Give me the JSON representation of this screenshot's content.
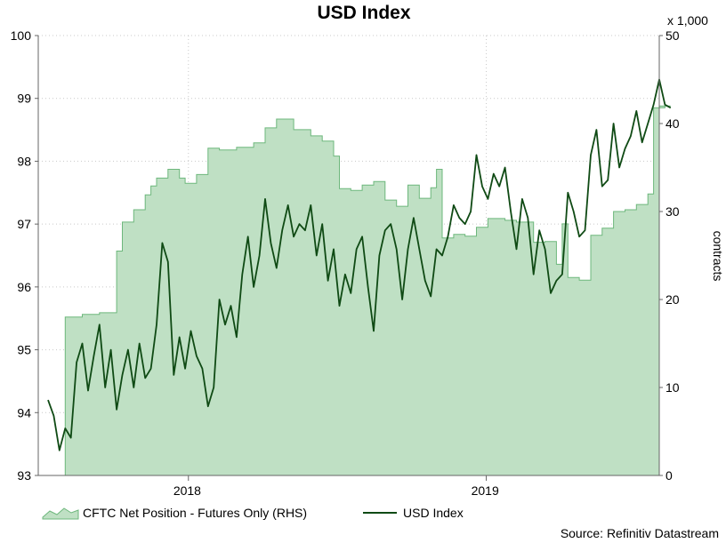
{
  "chart_data": {
    "type": "line",
    "title": "USD Index",
    "source": "Source: Refinitiv Datastream",
    "x_ticks": [
      "2018",
      "2019"
    ],
    "x_range": [
      "2017-07",
      "2019-08"
    ],
    "left_axis": {
      "ylim": [
        93,
        100
      ],
      "ticks": [
        "93",
        "94",
        "95",
        "96",
        "97",
        "98",
        "99",
        "100"
      ]
    },
    "right_axis": {
      "ylim": [
        0,
        50
      ],
      "ticks": [
        "0",
        "10",
        "20",
        "30",
        "40",
        "50"
      ],
      "label": "contracts",
      "multiplier": "x 1,000"
    },
    "legend": {
      "placement": "bottom-left"
    },
    "colors": {
      "area_fill": "#bfe0c4",
      "area_stroke": "#6db77c",
      "line": "#0f4a14",
      "grid": "#c9c9c9"
    },
    "series": [
      {
        "name": "CFTC Net Position - Futures Only (RHS)",
        "kind": "area",
        "axis": "right",
        "points": [
          [
            "2017-07-13",
            0
          ],
          [
            "2017-07-25",
            0
          ],
          [
            "2017-08-03",
            18
          ],
          [
            "2017-08-24",
            18.3
          ],
          [
            "2017-09-14",
            18.5
          ],
          [
            "2017-09-28",
            18.5
          ],
          [
            "2017-10-05",
            25.5
          ],
          [
            "2017-10-12",
            28.8
          ],
          [
            "2017-10-26",
            30.2
          ],
          [
            "2017-11-09",
            31.9
          ],
          [
            "2017-11-16",
            32.9
          ],
          [
            "2017-11-23",
            33.8
          ],
          [
            "2017-12-07",
            34.8
          ],
          [
            "2017-12-21",
            33.8
          ],
          [
            "2017-12-28",
            33.2
          ],
          [
            "2018-01-11",
            34.2
          ],
          [
            "2018-01-25",
            37.2
          ],
          [
            "2018-02-08",
            37.0
          ],
          [
            "2018-03-01",
            37.3
          ],
          [
            "2018-03-22",
            37.8
          ],
          [
            "2018-04-05",
            39.5
          ],
          [
            "2018-04-19",
            40.5
          ],
          [
            "2018-05-03",
            40.5
          ],
          [
            "2018-05-10",
            39.3
          ],
          [
            "2018-05-31",
            38.6
          ],
          [
            "2018-06-14",
            38.0
          ],
          [
            "2018-06-28",
            36.3
          ],
          [
            "2018-07-05",
            32.6
          ],
          [
            "2018-07-19",
            32.4
          ],
          [
            "2018-08-02",
            33.0
          ],
          [
            "2018-08-16",
            33.4
          ],
          [
            "2018-08-30",
            31.3
          ],
          [
            "2018-09-13",
            30.6
          ],
          [
            "2018-09-27",
            33.0
          ],
          [
            "2018-10-11",
            31.5
          ],
          [
            "2018-10-25",
            32.7
          ],
          [
            "2018-11-01",
            34.8
          ],
          [
            "2018-11-08",
            27.0
          ],
          [
            "2018-11-22",
            27.4
          ],
          [
            "2018-12-06",
            27.2
          ],
          [
            "2018-12-20",
            28.2
          ],
          [
            "2019-01-03",
            29.2
          ],
          [
            "2019-01-24",
            29.0
          ],
          [
            "2019-02-07",
            28.8
          ],
          [
            "2019-02-28",
            26.5
          ],
          [
            "2019-03-14",
            26.6
          ],
          [
            "2019-03-28",
            24.0
          ],
          [
            "2019-04-04",
            28.6
          ],
          [
            "2019-04-11",
            22.5
          ],
          [
            "2019-04-25",
            22.2
          ],
          [
            "2019-05-09",
            27.3
          ],
          [
            "2019-05-23",
            28.1
          ],
          [
            "2019-06-06",
            30.0
          ],
          [
            "2019-06-20",
            30.2
          ],
          [
            "2019-07-04",
            30.8
          ],
          [
            "2019-07-18",
            32.0
          ],
          [
            "2019-07-25",
            41.8
          ],
          [
            "2019-08-08",
            42.0
          ],
          [
            "2019-08-15",
            42.0
          ]
        ]
      },
      {
        "name": "USD Index",
        "kind": "line",
        "axis": "left",
        "points": [
          [
            "2017-07-13",
            94.2
          ],
          [
            "2017-07-20",
            93.95
          ],
          [
            "2017-07-27",
            93.4
          ],
          [
            "2017-08-03",
            93.75
          ],
          [
            "2017-08-10",
            93.6
          ],
          [
            "2017-08-17",
            94.8
          ],
          [
            "2017-08-24",
            95.1
          ],
          [
            "2017-08-31",
            94.35
          ],
          [
            "2017-09-07",
            94.9
          ],
          [
            "2017-09-14",
            95.4
          ],
          [
            "2017-09-21",
            94.4
          ],
          [
            "2017-09-28",
            95.0
          ],
          [
            "2017-10-05",
            94.05
          ],
          [
            "2017-10-12",
            94.6
          ],
          [
            "2017-10-19",
            95.0
          ],
          [
            "2017-10-26",
            94.4
          ],
          [
            "2017-11-02",
            95.1
          ],
          [
            "2017-11-09",
            94.55
          ],
          [
            "2017-11-16",
            94.7
          ],
          [
            "2017-11-23",
            95.4
          ],
          [
            "2017-11-30",
            96.7
          ],
          [
            "2017-12-07",
            96.4
          ],
          [
            "2017-12-14",
            94.6
          ],
          [
            "2017-12-21",
            95.2
          ],
          [
            "2017-12-28",
            94.7
          ],
          [
            "2018-01-04",
            95.3
          ],
          [
            "2018-01-11",
            94.9
          ],
          [
            "2018-01-18",
            94.7
          ],
          [
            "2018-01-25",
            94.1
          ],
          [
            "2018-02-01",
            94.4
          ],
          [
            "2018-02-08",
            95.8
          ],
          [
            "2018-02-15",
            95.4
          ],
          [
            "2018-02-22",
            95.7
          ],
          [
            "2018-03-01",
            95.2
          ],
          [
            "2018-03-08",
            96.2
          ],
          [
            "2018-03-15",
            96.8
          ],
          [
            "2018-03-22",
            96.0
          ],
          [
            "2018-03-29",
            96.5
          ],
          [
            "2018-04-05",
            97.4
          ],
          [
            "2018-04-12",
            96.7
          ],
          [
            "2018-04-19",
            96.3
          ],
          [
            "2018-04-26",
            96.9
          ],
          [
            "2018-05-03",
            97.3
          ],
          [
            "2018-05-10",
            96.8
          ],
          [
            "2018-05-17",
            97.0
          ],
          [
            "2018-05-24",
            96.9
          ],
          [
            "2018-05-31",
            97.3
          ],
          [
            "2018-06-07",
            96.5
          ],
          [
            "2018-06-14",
            97.0
          ],
          [
            "2018-06-21",
            96.1
          ],
          [
            "2018-06-28",
            96.6
          ],
          [
            "2018-07-05",
            95.7
          ],
          [
            "2018-07-12",
            96.2
          ],
          [
            "2018-07-19",
            95.9
          ],
          [
            "2018-07-26",
            96.6
          ],
          [
            "2018-08-02",
            96.8
          ],
          [
            "2018-08-09",
            96.0
          ],
          [
            "2018-08-16",
            95.3
          ],
          [
            "2018-08-23",
            96.5
          ],
          [
            "2018-08-30",
            96.9
          ],
          [
            "2018-09-06",
            97.0
          ],
          [
            "2018-09-13",
            96.6
          ],
          [
            "2018-09-20",
            95.8
          ],
          [
            "2018-09-27",
            96.6
          ],
          [
            "2018-10-04",
            97.1
          ],
          [
            "2018-10-11",
            96.6
          ],
          [
            "2018-10-18",
            96.1
          ],
          [
            "2018-10-25",
            95.85
          ],
          [
            "2018-11-01",
            96.6
          ],
          [
            "2018-11-08",
            96.5
          ],
          [
            "2018-11-15",
            96.8
          ],
          [
            "2018-11-22",
            97.3
          ],
          [
            "2018-11-29",
            97.1
          ],
          [
            "2018-12-06",
            97.0
          ],
          [
            "2018-12-13",
            97.2
          ],
          [
            "2018-12-20",
            98.1
          ],
          [
            "2018-12-27",
            97.6
          ],
          [
            "2019-01-03",
            97.4
          ],
          [
            "2019-01-10",
            97.8
          ],
          [
            "2019-01-17",
            97.6
          ],
          [
            "2019-01-24",
            97.9
          ],
          [
            "2019-01-31",
            97.2
          ],
          [
            "2019-02-07",
            96.6
          ],
          [
            "2019-02-14",
            97.4
          ],
          [
            "2019-02-21",
            97.1
          ],
          [
            "2019-02-28",
            96.2
          ],
          [
            "2019-03-07",
            96.9
          ],
          [
            "2019-03-14",
            96.6
          ],
          [
            "2019-03-21",
            95.9
          ],
          [
            "2019-03-28",
            96.1
          ],
          [
            "2019-04-04",
            96.2
          ],
          [
            "2019-04-11",
            97.5
          ],
          [
            "2019-04-18",
            97.2
          ],
          [
            "2019-04-25",
            96.8
          ],
          [
            "2019-05-02",
            96.9
          ],
          [
            "2019-05-09",
            98.1
          ],
          [
            "2019-05-16",
            98.5
          ],
          [
            "2019-05-23",
            97.6
          ],
          [
            "2019-05-30",
            97.7
          ],
          [
            "2019-06-06",
            98.6
          ],
          [
            "2019-06-13",
            97.9
          ],
          [
            "2019-06-20",
            98.2
          ],
          [
            "2019-06-27",
            98.4
          ],
          [
            "2019-07-04",
            98.8
          ],
          [
            "2019-07-11",
            98.3
          ],
          [
            "2019-07-18",
            98.6
          ],
          [
            "2019-07-25",
            98.9
          ],
          [
            "2019-08-01",
            99.3
          ],
          [
            "2019-08-08",
            98.9
          ],
          [
            "2019-08-15",
            98.85
          ]
        ]
      }
    ]
  }
}
